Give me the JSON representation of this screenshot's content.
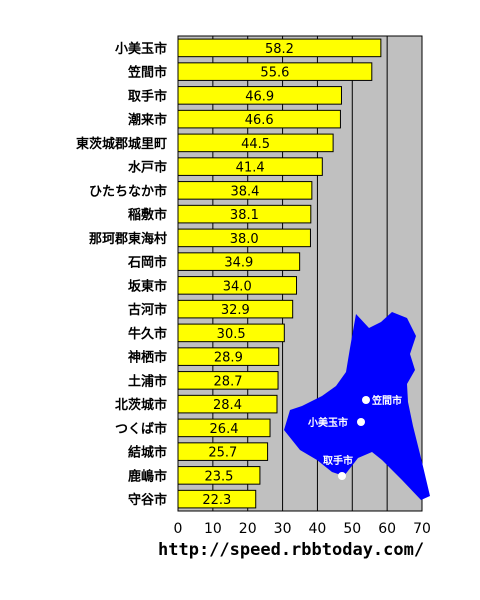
{
  "chart_data": {
    "type": "bar",
    "orientation": "horizontal",
    "categories": [
      "小美玉市",
      "笠間市",
      "取手市",
      "潮来市",
      "東茨城郡城里町",
      "水戸市",
      "ひたちなか市",
      "稲敷市",
      "那珂郡東海村",
      "石岡市",
      "坂東市",
      "古河市",
      "牛久市",
      "神栖市",
      "土浦市",
      "北茨城市",
      "つくば市",
      "結城市",
      "鹿嶋市",
      "守谷市"
    ],
    "values": [
      58.2,
      55.6,
      46.9,
      46.6,
      44.5,
      41.4,
      38.4,
      38.1,
      38.0,
      34.9,
      34.0,
      32.9,
      30.5,
      28.9,
      28.7,
      28.4,
      26.4,
      25.7,
      23.5,
      22.3
    ],
    "value_labels": [
      "58.2",
      "55.6",
      "46.9",
      "46.6",
      "44.5",
      "41.4",
      "38.4",
      "38.1",
      "38.0",
      "34.9",
      "34.0",
      "32.9",
      "30.5",
      "28.9",
      "28.7",
      "28.4",
      "26.4",
      "25.7",
      "23.5",
      "22.3"
    ],
    "xlim": [
      0,
      70
    ],
    "xticks": [
      "0",
      "10",
      "20",
      "30",
      "40",
      "50",
      "60",
      "70"
    ],
    "grid": "vertical",
    "bar_color": "#ffff00",
    "plot_background": "#c0c0c0",
    "map_color": "#0000ff",
    "map_labels": [
      "笠間市",
      "小美玉市",
      "取手市"
    ]
  },
  "footer": {
    "url": "http://speed.rbbtoday.com/"
  }
}
